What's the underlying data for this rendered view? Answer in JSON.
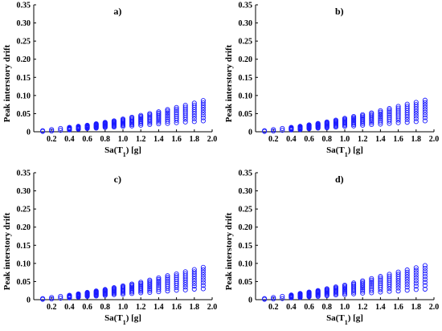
{
  "chart_data": [
    {
      "type": "scatter",
      "title": "a)",
      "xlabel": "Sa(T1) [g]",
      "ylabel": "Peak interstory drift",
      "xlim": [
        0.0,
        2.0
      ],
      "ylim": [
        0.0,
        0.35
      ],
      "xticks": [
        "0.2",
        "0.4",
        "0.6",
        "0.8",
        "1.0",
        "1.2",
        "1.4",
        "1.6",
        "1.8",
        "2.0"
      ],
      "yticks": [
        "0",
        "0.05",
        "0.10",
        "0.15",
        "0.20",
        "0.25",
        "0.30",
        "0.35"
      ],
      "grid": false,
      "marker_color": "#1a1aff",
      "points": {
        "x": [
          0.1,
          0.2,
          0.3,
          0.4,
          0.5,
          0.6,
          0.7,
          0.8,
          0.9,
          1.0,
          1.1,
          1.2,
          1.3,
          1.4,
          1.5,
          1.6,
          1.7,
          1.8,
          1.9
        ],
        "y_min": [
          0.001,
          0.002,
          0.004,
          0.005,
          0.007,
          0.009,
          0.01,
          0.012,
          0.013,
          0.015,
          0.016,
          0.018,
          0.02,
          0.022,
          0.023,
          0.025,
          0.027,
          0.028,
          0.03
        ],
        "y_max": [
          0.003,
          0.006,
          0.009,
          0.012,
          0.015,
          0.018,
          0.022,
          0.026,
          0.03,
          0.035,
          0.04,
          0.045,
          0.05,
          0.055,
          0.061,
          0.067,
          0.073,
          0.079,
          0.086
        ]
      }
    },
    {
      "type": "scatter",
      "title": "b)",
      "xlabel": "Sa(T1) [g]",
      "ylabel": "Peak interstory drift",
      "xlim": [
        0.0,
        2.0
      ],
      "ylim": [
        0.0,
        0.35
      ],
      "xticks": [
        "0.2",
        "0.4",
        "0.6",
        "0.8",
        "1.0",
        "1.2",
        "1.4",
        "1.6",
        "1.8",
        "2.0"
      ],
      "yticks": [
        "0",
        "0.05",
        "0.10",
        "0.15",
        "0.20",
        "0.25",
        "0.30",
        "0.35"
      ],
      "grid": false,
      "marker_color": "#1a1aff",
      "points": {
        "x": [
          0.1,
          0.2,
          0.3,
          0.4,
          0.5,
          0.6,
          0.7,
          0.8,
          0.9,
          1.0,
          1.1,
          1.2,
          1.3,
          1.4,
          1.5,
          1.6,
          1.7,
          1.8,
          1.9
        ],
        "y_min": [
          0.001,
          0.002,
          0.004,
          0.005,
          0.006,
          0.008,
          0.01,
          0.011,
          0.013,
          0.015,
          0.016,
          0.018,
          0.02,
          0.021,
          0.023,
          0.025,
          0.026,
          0.028,
          0.03
        ],
        "y_max": [
          0.003,
          0.006,
          0.009,
          0.012,
          0.015,
          0.019,
          0.023,
          0.027,
          0.032,
          0.037,
          0.042,
          0.047,
          0.052,
          0.058,
          0.064,
          0.07,
          0.076,
          0.081,
          0.087
        ]
      }
    },
    {
      "type": "scatter",
      "title": "c)",
      "xlabel": "Sa(T1) [g]",
      "ylabel": "Peak interstory drift",
      "xlim": [
        0.0,
        2.0
      ],
      "ylim": [
        0.0,
        0.35
      ],
      "xticks": [
        "0.2",
        "0.4",
        "0.6",
        "0.8",
        "1.0",
        "1.2",
        "1.4",
        "1.6",
        "1.8",
        "2.0"
      ],
      "yticks": [
        "0",
        "0.05",
        "0.10",
        "0.15",
        "0.20",
        "0.25",
        "0.30",
        "0.35"
      ],
      "grid": false,
      "marker_color": "#1a1aff",
      "points": {
        "x": [
          0.1,
          0.2,
          0.3,
          0.4,
          0.5,
          0.6,
          0.7,
          0.8,
          0.9,
          1.0,
          1.1,
          1.2,
          1.3,
          1.4,
          1.5,
          1.6,
          1.7,
          1.8,
          1.9
        ],
        "y_min": [
          0.001,
          0.002,
          0.004,
          0.005,
          0.007,
          0.009,
          0.01,
          0.012,
          0.014,
          0.015,
          0.017,
          0.019,
          0.02,
          0.022,
          0.024,
          0.026,
          0.027,
          0.029,
          0.03
        ],
        "y_max": [
          0.003,
          0.006,
          0.009,
          0.012,
          0.016,
          0.02,
          0.024,
          0.028,
          0.033,
          0.038,
          0.043,
          0.048,
          0.054,
          0.06,
          0.066,
          0.071,
          0.077,
          0.083,
          0.089
        ]
      }
    },
    {
      "type": "scatter",
      "title": "d)",
      "xlabel": "Sa(T1) [g]",
      "ylabel": "Peak interstory drift",
      "xlim": [
        0.0,
        2.0
      ],
      "ylim": [
        0.0,
        0.35
      ],
      "xticks": [
        "0.2",
        "0.4",
        "0.6",
        "0.8",
        "1.0",
        "1.2",
        "1.4",
        "1.6",
        "1.8",
        "2.0"
      ],
      "yticks": [
        "0",
        "0.05",
        "0.10",
        "0.15",
        "0.20",
        "0.25",
        "0.30",
        "0.35"
      ],
      "grid": false,
      "marker_color": "#1a1aff",
      "points": {
        "x": [
          0.1,
          0.2,
          0.3,
          0.4,
          0.5,
          0.6,
          0.7,
          0.8,
          0.9,
          1.0,
          1.1,
          1.2,
          1.3,
          1.4,
          1.5,
          1.6,
          1.7,
          1.8,
          1.9
        ],
        "y_min": [
          0.001,
          0.002,
          0.003,
          0.005,
          0.006,
          0.008,
          0.009,
          0.011,
          0.013,
          0.014,
          0.016,
          0.018,
          0.019,
          0.021,
          0.023,
          0.024,
          0.026,
          0.028,
          0.029
        ],
        "y_max": [
          0.003,
          0.006,
          0.009,
          0.013,
          0.017,
          0.021,
          0.025,
          0.03,
          0.035,
          0.04,
          0.046,
          0.052,
          0.058,
          0.064,
          0.07,
          0.076,
          0.082,
          0.088,
          0.094
        ]
      }
    }
  ]
}
